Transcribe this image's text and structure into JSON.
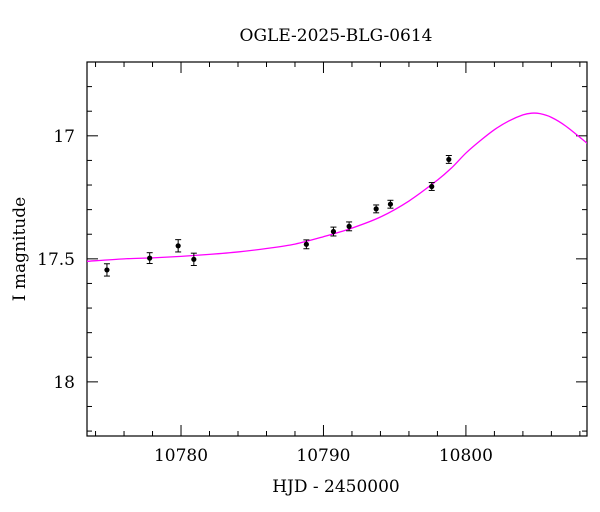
{
  "chart_data": {
    "type": "scatter",
    "title": "OGLE-2025-BLG-0614",
    "xlabel": "HJD - 2450000",
    "ylabel": "I magnitude",
    "xlim": [
      10773.4,
      10808.5
    ],
    "ylim": [
      18.22,
      16.7
    ],
    "y_inverted": true,
    "xticks": [
      10780,
      10790,
      10800
    ],
    "yticks": [
      17,
      17.5,
      18
    ],
    "grid": false,
    "colors": {
      "points": "#000000",
      "model": "#ff00ff"
    },
    "series": [
      {
        "type": "scatter",
        "x": [
          10774.8,
          10777.8,
          10779.8,
          10780.9,
          10788.8,
          10790.7,
          10791.8,
          10793.7,
          10794.7,
          10797.6,
          10798.8
        ],
        "y": [
          17.545,
          17.497,
          17.447,
          17.502,
          17.441,
          17.389,
          17.368,
          17.297,
          17.278,
          17.206,
          17.096
        ],
        "err": [
          0.025,
          0.022,
          0.025,
          0.025,
          0.018,
          0.018,
          0.018,
          0.016,
          0.016,
          0.016,
          0.016
        ]
      },
      {
        "type": "line",
        "x": [
          10773.4,
          10776,
          10778,
          10780,
          10782,
          10784,
          10786,
          10788,
          10790,
          10792,
          10794,
          10796,
          10798,
          10799,
          10800,
          10801,
          10802,
          10803,
          10804,
          10804.6,
          10805.2,
          10806,
          10807,
          10808.5
        ],
        "y": [
          17.51,
          17.5,
          17.496,
          17.49,
          17.482,
          17.472,
          17.458,
          17.44,
          17.41,
          17.375,
          17.33,
          17.265,
          17.18,
          17.13,
          17.07,
          17.02,
          16.975,
          16.94,
          16.915,
          16.908,
          16.91,
          16.925,
          16.96,
          17.03
        ]
      }
    ]
  }
}
